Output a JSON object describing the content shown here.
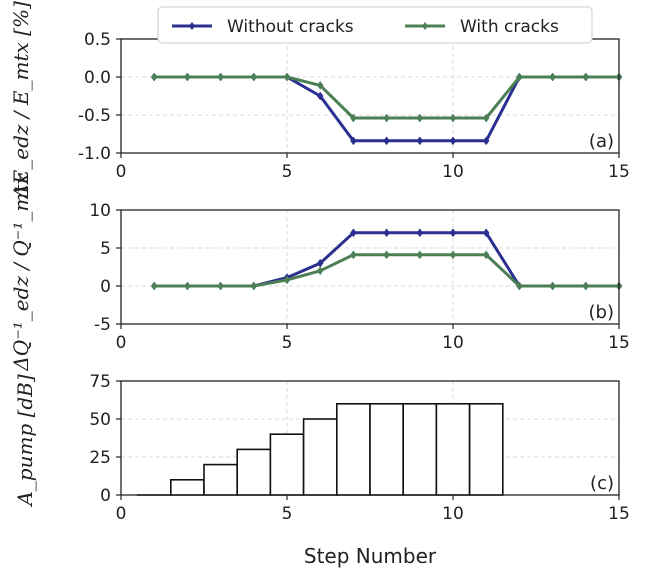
{
  "chart_data": [
    {
      "type": "line",
      "panel_tag": "(a)",
      "ylabel": "ΔE_edz / E_mtx [%]",
      "xlim": [
        0,
        15
      ],
      "ylim": [
        -1.0,
        0.5
      ],
      "xticks": [
        0,
        5,
        10,
        15
      ],
      "xtick_labels": [
        "0",
        "5",
        "10",
        "15"
      ],
      "yticks": [
        -1.0,
        -0.5,
        0.0,
        0.5
      ],
      "ytick_labels": [
        "-1.0",
        "-0.5",
        "0.0",
        "0.5"
      ],
      "grid": true,
      "x": [
        1,
        2,
        3,
        4,
        5,
        6,
        7,
        8,
        9,
        10,
        11,
        12,
        13,
        14,
        15
      ],
      "series": [
        {
          "name": "Without cracks",
          "color": "#2b2f8f",
          "values": [
            0,
            0,
            0,
            0,
            0,
            -0.25,
            -0.84,
            -0.84,
            -0.84,
            -0.84,
            -0.84,
            0,
            0,
            0,
            0
          ]
        },
        {
          "name": "With cracks",
          "color": "#4c7f55",
          "values": [
            0,
            0,
            0,
            0,
            0,
            -0.11,
            -0.54,
            -0.54,
            -0.54,
            -0.54,
            -0.54,
            0,
            0,
            0,
            0
          ]
        }
      ],
      "legend": {
        "placement": "top-center",
        "entries": [
          "Without cracks",
          "With cracks"
        ]
      }
    },
    {
      "type": "line",
      "panel_tag": "(b)",
      "ylabel": "ΔQ⁻¹_edz / Q⁻¹_mtx",
      "xlim": [
        0,
        15
      ],
      "ylim": [
        -5,
        10
      ],
      "xticks": [
        0,
        5,
        10,
        15
      ],
      "xtick_labels": [
        "0",
        "5",
        "10",
        "15"
      ],
      "yticks": [
        -5,
        0,
        5,
        10
      ],
      "ytick_labels": [
        "-5",
        "0",
        "5",
        "10"
      ],
      "grid": true,
      "x": [
        1,
        2,
        3,
        4,
        5,
        6,
        7,
        8,
        9,
        10,
        11,
        12,
        13,
        14,
        15
      ],
      "series": [
        {
          "name": "Without cracks",
          "color": "#2b2f8f",
          "values": [
            0,
            0,
            0,
            0,
            1.1,
            3.0,
            7.0,
            7.0,
            7.0,
            7.0,
            7.0,
            0,
            0,
            0,
            0
          ]
        },
        {
          "name": "With cracks",
          "color": "#4c7f55",
          "values": [
            0,
            0,
            0,
            0,
            0.8,
            2.0,
            4.1,
            4.1,
            4.1,
            4.1,
            4.1,
            0,
            0,
            0,
            0
          ]
        }
      ]
    },
    {
      "type": "bar",
      "panel_tag": "(c)",
      "ylabel": "A_pump [dB]",
      "xlabel": "Step Number",
      "xlim": [
        0,
        15
      ],
      "ylim": [
        0,
        75
      ],
      "xticks": [
        0,
        5,
        10,
        15
      ],
      "xtick_labels": [
        "0",
        "5",
        "10",
        "15"
      ],
      "yticks": [
        0,
        25,
        50,
        75
      ],
      "ytick_labels": [
        "0",
        "25",
        "50",
        "75"
      ],
      "grid": true,
      "categories": [
        1,
        2,
        3,
        4,
        5,
        6,
        7,
        8,
        9,
        10,
        11
      ],
      "values": [
        0,
        10,
        20,
        30,
        40,
        50,
        60,
        60,
        60,
        60,
        60
      ],
      "bar_width": 1,
      "bar_color": "#ffffff",
      "edge_color": "#111111"
    }
  ]
}
